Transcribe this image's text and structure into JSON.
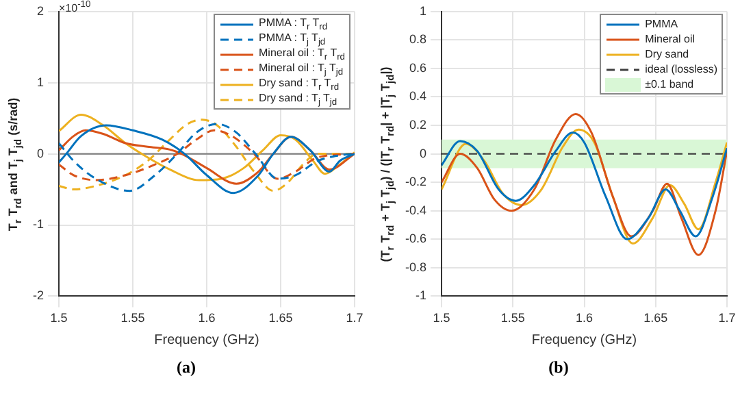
{
  "chart_data": [
    {
      "type": "line",
      "xlabel": "Frequency (GHz)",
      "ylabel": "T$_{r}$ T$_{rd}$  and  T$_{j}$ T$_{jd}$   (s/rad)",
      "annotations": [
        "×10$^{-10}$",
        "(a)"
      ],
      "xlim": [
        1.5,
        1.7
      ],
      "xticks": [
        1.5,
        1.55,
        1.6,
        1.65,
        1.7
      ],
      "ylim": [
        -2,
        2
      ],
      "yticks": [
        -2,
        -1,
        0,
        1,
        2
      ],
      "grid": true,
      "legend": "top right",
      "ref_lines": [
        {
          "axis": "y",
          "value": 0,
          "color": "#808080",
          "line_style": "solid"
        }
      ],
      "series": [
        {
          "name": "PMMA : T$_{r}$ T$_{rd}$",
          "color": "#0072bd",
          "line_style": "solid",
          "x": [
            1.5,
            1.505,
            1.515,
            1.532,
            1.55,
            1.57,
            1.585,
            1.6,
            1.618,
            1.635,
            1.645,
            1.657,
            1.67,
            1.683,
            1.69,
            1.7
          ],
          "values": [
            -0.12,
            0,
            0.25,
            0.4,
            0.33,
            0.2,
            0,
            -0.3,
            -0.55,
            -0.3,
            0,
            0.24,
            0.05,
            -0.25,
            -0.1,
            0
          ]
        },
        {
          "name": "PMMA : T$_{j}$ T$_{jd}$",
          "color": "#0072bd",
          "line_style": "dashed",
          "x": [
            1.5,
            1.51,
            1.525,
            1.548,
            1.565,
            1.58,
            1.593,
            1.607,
            1.62,
            1.633,
            1.648,
            1.66,
            1.675,
            1.69,
            1.7
          ],
          "values": [
            0.15,
            -0.1,
            -0.35,
            -0.52,
            -0.3,
            0,
            0.3,
            0.42,
            0.3,
            0,
            -0.35,
            -0.3,
            -0.1,
            -0.02,
            0
          ]
        },
        {
          "name": "Mineral oil : T$_{r}$ T$_{rd}$",
          "color": "#d95319",
          "line_style": "solid",
          "x": [
            1.5,
            1.51,
            1.518,
            1.53,
            1.545,
            1.56,
            1.575,
            1.583,
            1.6,
            1.62,
            1.635,
            1.645,
            1.657,
            1.67,
            1.683,
            1.7
          ],
          "values": [
            0.05,
            0.25,
            0.33,
            0.28,
            0.15,
            0.1,
            0.06,
            0,
            -0.2,
            -0.42,
            -0.25,
            0,
            0.24,
            0.05,
            -0.22,
            0
          ]
        },
        {
          "name": "Mineral oil : T$_{j}$ T$_{jd}$",
          "color": "#d95319",
          "line_style": "dashed",
          "x": [
            1.5,
            1.51,
            1.525,
            1.545,
            1.565,
            1.58,
            1.593,
            1.605,
            1.617,
            1.632,
            1.648,
            1.66,
            1.675,
            1.7
          ],
          "values": [
            -0.15,
            -0.3,
            -0.37,
            -0.3,
            -0.15,
            0,
            0.2,
            0.33,
            0.25,
            0,
            -0.35,
            -0.25,
            -0.05,
            0
          ]
        },
        {
          "name": "Dry sand : T$_{r}$ T$_{rd}$",
          "color": "#edb120",
          "line_style": "solid",
          "x": [
            1.5,
            1.515,
            1.53,
            1.545,
            1.56,
            1.575,
            1.595,
            1.61,
            1.625,
            1.638,
            1.65,
            1.66,
            1.672,
            1.68,
            1.69,
            1.7
          ],
          "values": [
            0.32,
            0.55,
            0.4,
            0.15,
            -0.05,
            -0.22,
            -0.37,
            -0.35,
            -0.2,
            0.05,
            0.26,
            0.2,
            -0.1,
            -0.28,
            -0.15,
            0.02
          ]
        },
        {
          "name": "Dry sand : T$_{j}$ T$_{jd}$",
          "color": "#edb120",
          "line_style": "dashed",
          "x": [
            1.5,
            1.51,
            1.525,
            1.545,
            1.56,
            1.575,
            1.587,
            1.597,
            1.607,
            1.62,
            1.632,
            1.645,
            1.655,
            1.665,
            1.675,
            1.7
          ],
          "values": [
            -0.45,
            -0.5,
            -0.45,
            -0.3,
            -0.1,
            0.2,
            0.42,
            0.48,
            0.4,
            0.1,
            -0.25,
            -0.52,
            -0.4,
            -0.15,
            0,
            0
          ]
        }
      ]
    },
    {
      "type": "line",
      "xlabel": "Frequency (GHz)",
      "ylabel": "(T$_{r}$ T$_{rd}$ + T$_{j}$ T$_{jd}$) / (|T$_{r}$ T$_{rd}$| + |T$_{j}$ T$_{jd}$|)",
      "annotations": [
        "(b)"
      ],
      "xlim": [
        1.5,
        1.7
      ],
      "xticks": [
        1.5,
        1.55,
        1.6,
        1.65,
        1.7
      ],
      "ylim": [
        -1,
        1
      ],
      "yticks": [
        -1,
        -0.8,
        -0.6,
        -0.4,
        -0.2,
        0,
        0.2,
        0.4,
        0.6,
        0.8,
        1
      ],
      "grid": true,
      "legend": "top right",
      "ref_lines": [
        {
          "axis": "y",
          "value": 0,
          "label": "ideal (lossless)",
          "color": "#404040",
          "line_style": "dashed"
        }
      ],
      "bands": [
        {
          "axis": "y",
          "from": -0.1,
          "to": 0.1,
          "label": "±0.1 band",
          "color": "#d9f7d6"
        }
      ],
      "series": [
        {
          "name": "PMMA",
          "color": "#0072bd",
          "x": [
            1.5,
            1.513,
            1.525,
            1.54,
            1.552,
            1.565,
            1.58,
            1.592,
            1.6,
            1.615,
            1.63,
            1.645,
            1.657,
            1.667,
            1.678,
            1.69,
            1.7
          ],
          "values": [
            -0.08,
            0.09,
            0.02,
            -0.25,
            -0.33,
            -0.22,
            0.02,
            0.15,
            0.08,
            -0.3,
            -0.6,
            -0.45,
            -0.25,
            -0.4,
            -0.58,
            -0.3,
            0.04
          ]
        },
        {
          "name": "Mineral oil",
          "color": "#d95319",
          "x": [
            1.5,
            1.513,
            1.525,
            1.537,
            1.549,
            1.565,
            1.58,
            1.594,
            1.605,
            1.62,
            1.633,
            1.648,
            1.658,
            1.668,
            1.68,
            1.692,
            1.7
          ],
          "values": [
            -0.2,
            0,
            -0.1,
            -0.32,
            -0.4,
            -0.25,
            0.1,
            0.28,
            0.15,
            -0.3,
            -0.58,
            -0.4,
            -0.21,
            -0.45,
            -0.71,
            -0.4,
            0.02
          ]
        },
        {
          "name": "Dry sand",
          "color": "#edb120",
          "x": [
            1.5,
            1.517,
            1.53,
            1.543,
            1.556,
            1.57,
            1.585,
            1.596,
            1.607,
            1.62,
            1.634,
            1.648,
            1.66,
            1.67,
            1.68,
            1.692,
            1.7
          ],
          "values": [
            -0.25,
            0.07,
            -0.05,
            -0.28,
            -0.36,
            -0.25,
            0.05,
            0.17,
            0.08,
            -0.3,
            -0.63,
            -0.45,
            -0.22,
            -0.35,
            -0.53,
            -0.2,
            0.08
          ]
        }
      ]
    }
  ]
}
